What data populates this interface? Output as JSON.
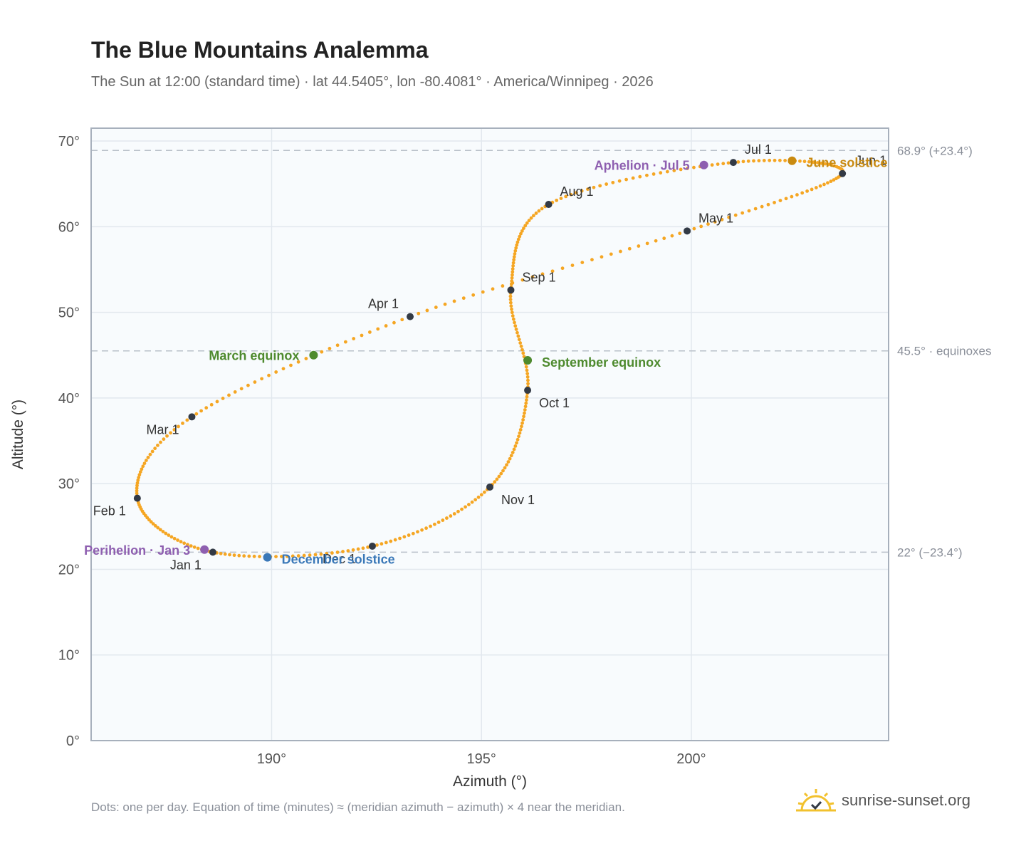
{
  "chart_data": {
    "type": "scatter",
    "title": "The Blue Mountains Analemma",
    "subtitle": "The Sun at 12:00 (standard time) · lat 44.5405°, lon -80.4081° · America/Winnipeg · 2026",
    "xlabel": "Azimuth (°)",
    "ylabel": "Altitude (°)",
    "xlim": [
      185.7,
      204.7
    ],
    "ylim": [
      0,
      71.5
    ],
    "xticks": [
      190,
      195,
      200
    ],
    "xtick_labels": [
      "190°",
      "195°",
      "200°"
    ],
    "yticks": [
      0,
      10,
      20,
      30,
      40,
      50,
      60,
      70
    ],
    "ytick_labels": [
      "0°",
      "10°",
      "20°",
      "30°",
      "40°",
      "50°",
      "60°",
      "70°"
    ],
    "grid": true,
    "path_color": "#f5a623",
    "month_point_color": "#333a45",
    "reference_lines": [
      {
        "y": 68.9,
        "label": "68.9° (+23.4°)"
      },
      {
        "y": 45.5,
        "label": "45.5° · equinoxes"
      },
      {
        "y": 22.0,
        "label": "22° (−23.4°)"
      }
    ],
    "month_points": [
      {
        "label": "Jan 1",
        "az": 188.6,
        "alt": 22.0
      },
      {
        "label": "Feb 1",
        "az": 186.8,
        "alt": 28.3
      },
      {
        "label": "Mar 1",
        "az": 188.1,
        "alt": 37.8
      },
      {
        "label": "Apr 1",
        "az": 193.3,
        "alt": 49.5
      },
      {
        "label": "May 1",
        "az": 199.9,
        "alt": 59.5
      },
      {
        "label": "Jun 1",
        "az": 203.6,
        "alt": 66.2
      },
      {
        "label": "Jul 1",
        "az": 201.0,
        "alt": 67.5
      },
      {
        "label": "Aug 1",
        "az": 196.6,
        "alt": 62.6
      },
      {
        "label": "Sep 1",
        "az": 195.7,
        "alt": 52.6
      },
      {
        "label": "Oct 1",
        "az": 196.1,
        "alt": 40.9
      },
      {
        "label": "Nov 1",
        "az": 195.2,
        "alt": 29.6
      },
      {
        "label": "Dec 1",
        "az": 192.4,
        "alt": 22.7
      }
    ],
    "events": [
      {
        "label": "Perihelion · Jan 3",
        "az": 188.4,
        "alt": 22.3,
        "color": "#8e5fb0"
      },
      {
        "label": "March equinox",
        "az": 191.0,
        "alt": 45.0,
        "color": "#4e8a2e"
      },
      {
        "label": "June solstice",
        "az": 202.4,
        "alt": 67.7,
        "color": "#c98a10"
      },
      {
        "label": "Aphelion · Jul 5",
        "az": 200.3,
        "alt": 67.2,
        "color": "#8e5fb0"
      },
      {
        "label": "September equinox",
        "az": 196.1,
        "alt": 44.4,
        "color": "#4e8a2e"
      },
      {
        "label": "December solstice",
        "az": 189.9,
        "alt": 21.4,
        "color": "#3a78b8"
      }
    ]
  },
  "footnote": "Dots: one per day. Equation of time (minutes) ≈ (meridian azimuth − azimuth) × 4 near the meridian.",
  "brand": {
    "name": "sunrise-sunset.org",
    "icon": "sun-check-logo-icon"
  }
}
